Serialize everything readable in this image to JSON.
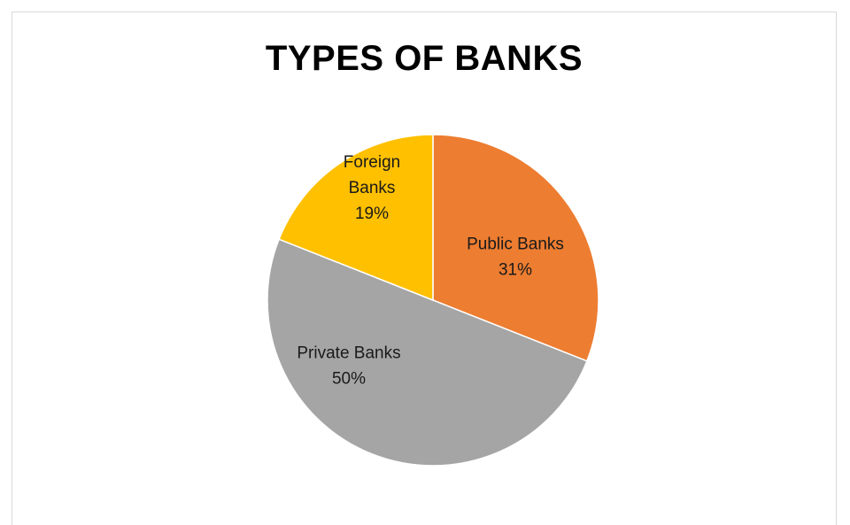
{
  "chart_data": {
    "type": "pie",
    "title": "TYPES OF BANKS",
    "slices": [
      {
        "label_lines": [
          "Public Banks"
        ],
        "percent_label": "31%",
        "value": 31,
        "color": "#ED7D31"
      },
      {
        "label_lines": [
          "Private Banks"
        ],
        "percent_label": "50%",
        "value": 50,
        "color": "#A5A5A5"
      },
      {
        "label_lines": [
          "Foreign",
          "Banks"
        ],
        "percent_label": "19%",
        "value": 19,
        "color": "#FFC000"
      }
    ],
    "start_angle_deg": 0,
    "direction": "clockwise",
    "data_labels": "inside"
  }
}
